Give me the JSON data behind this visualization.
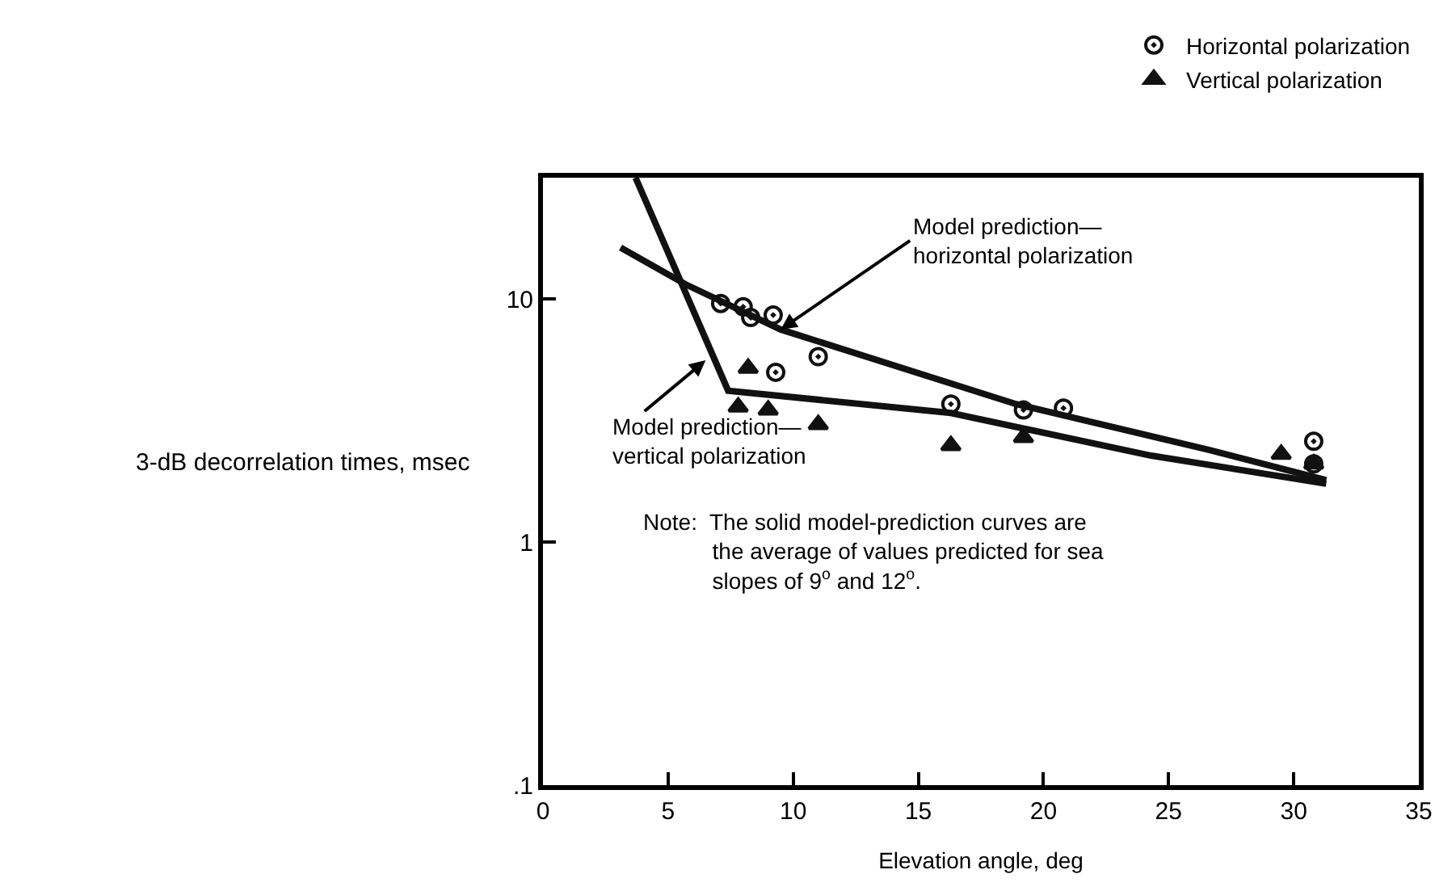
{
  "chart_data": {
    "type": "scatter",
    "xlabel": "Elevation angle, deg",
    "ylabel": "3-dB decorrelation times, msec",
    "log": "y",
    "xlim": [
      0,
      35
    ],
    "ylim": [
      0.1,
      31.6
    ],
    "xticks": [
      0,
      5,
      10,
      15,
      20,
      25,
      30,
      35
    ],
    "yticks": [
      {
        "value": 0.1,
        "label": ".1"
      },
      1,
      10
    ],
    "legend": "top right",
    "series": [
      {
        "name": "Horizontal polarization",
        "marker": "circle",
        "color": "#111111",
        "x": [
          7.1,
          8.0,
          8.3,
          9.2,
          9.3,
          11.0,
          16.3,
          19.2,
          20.8,
          30.8,
          30.8
        ],
        "values": [
          9.6,
          9.3,
          8.4,
          8.6,
          5.0,
          5.8,
          3.7,
          3.5,
          3.56,
          2.6,
          2.1
        ]
      },
      {
        "name": "Vertical polarization",
        "marker": "triangle",
        "color": "#111111",
        "x": [
          8.2,
          7.8,
          9.0,
          11.0,
          16.3,
          19.2,
          29.5,
          30.8
        ],
        "values": [
          5.2,
          3.6,
          3.5,
          3.05,
          2.5,
          2.7,
          2.3,
          2.1
        ]
      },
      {
        "type": "line",
        "marker": "none",
        "line_style": "solid",
        "color": "#111111",
        "x": [
          3.1,
          5.7,
          9.5,
          18.9,
          26.6,
          31.3
        ],
        "values": [
          16.3,
          11.5,
          7.5,
          3.7,
          2.4,
          1.8
        ]
      },
      {
        "type": "line",
        "marker": "none",
        "line_style": "solid",
        "color": "#111111",
        "x": [
          3.7,
          7.4,
          16.3,
          24.3,
          31.3
        ],
        "values": [
          31.6,
          4.2,
          3.4,
          2.27,
          1.74
        ]
      }
    ],
    "annotations": [
      {
        "text": "Model prediction—\nhorizontal polarization",
        "x": 9.5,
        "y": 7.5
      },
      {
        "text": "Model prediction—\nvertical polarization",
        "x": 6.5,
        "y": 5.6
      },
      "Note:  The solid model-prediction curves are\n           the average of values predicted for sea\n           slopes of 9$^{o}$ and 12$^{o}$."
    ]
  }
}
